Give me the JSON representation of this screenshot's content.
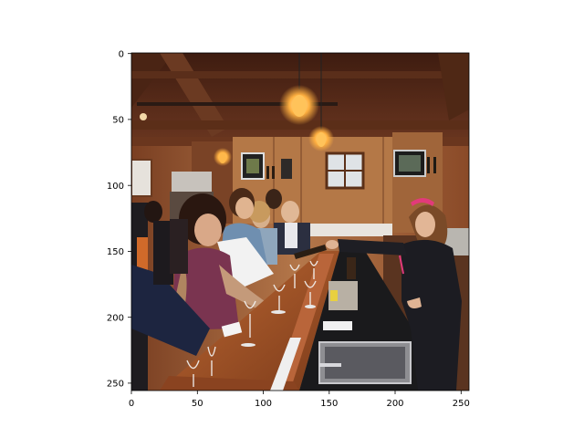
{
  "figure": {
    "x_ticks": [
      "0",
      "50",
      "100",
      "150",
      "200",
      "250"
    ],
    "y_ticks": [
      "0",
      "50",
      "100",
      "150",
      "200",
      "250"
    ],
    "image_extent": {
      "x": [
        0,
        256
      ],
      "y": [
        256,
        0
      ]
    }
  },
  "photo": {
    "subject": "winery tasting room: visitors at a wooden bar, server pouring wine",
    "palette": {
      "wood_dark": "#5a2f1c",
      "wood_mid": "#8a4e2c",
      "wood_light": "#b77d4d",
      "beam": "#6b3a22",
      "lamp": "#ffb040",
      "counter_black": "#1a1a1c",
      "bar_top": "#a4572c"
    }
  }
}
